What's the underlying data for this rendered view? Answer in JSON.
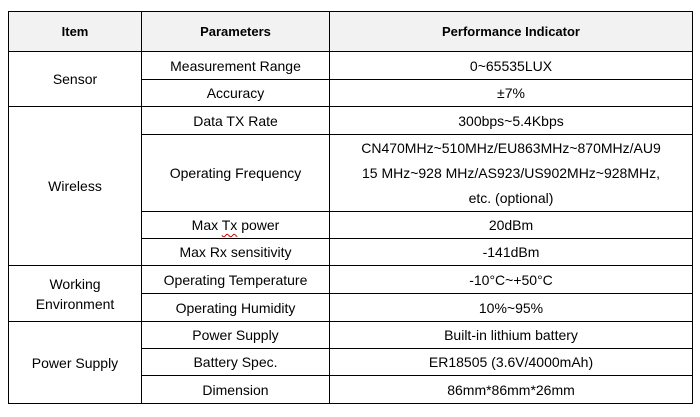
{
  "headers": {
    "item": "Item",
    "parameters": "Parameters",
    "performance": "Performance Indicator"
  },
  "groups": {
    "sensor": "Sensor",
    "wireless": "Wireless",
    "working_environment_line1": "Working",
    "working_environment_line2": "Environment",
    "power_supply": "Power Supply"
  },
  "rows": {
    "measurement_range": {
      "param": "Measurement Range",
      "value": "0~65535LUX"
    },
    "accuracy": {
      "param": "Accuracy",
      "value": "±7%"
    },
    "data_tx_rate": {
      "param": "Data TX Rate",
      "value": "300bps~5.4Kbps"
    },
    "operating_frequency": {
      "param": "Operating Frequency",
      "value_line1": "CN470MHz~510MHz/EU863MHz~870MHz/AU9",
      "value_line2": "15 MHz~928 MHz/AS923/US902MHz~928MHz,",
      "value_line3": "etc. (optional)"
    },
    "max_tx_power": {
      "param_pre": "Max ",
      "param_wavy": "Tx",
      "param_post": " power",
      "value": "20dBm"
    },
    "max_rx_sensitivity": {
      "param": "Max Rx sensitivity",
      "value": "-141dBm"
    },
    "operating_temperature": {
      "param": "Operating Temperature",
      "value": "-10°C~+50°C"
    },
    "operating_humidity": {
      "param": "Operating Humidity",
      "value": "10%~95%"
    },
    "power_supply": {
      "param": "Power Supply",
      "value": "Built-in lithium battery"
    },
    "battery_spec": {
      "param": "Battery Spec.",
      "value": "ER18505 (3.6V/4000mAh)"
    },
    "dimension": {
      "param": "Dimension",
      "value": "86mm*86mm*26mm"
    }
  }
}
